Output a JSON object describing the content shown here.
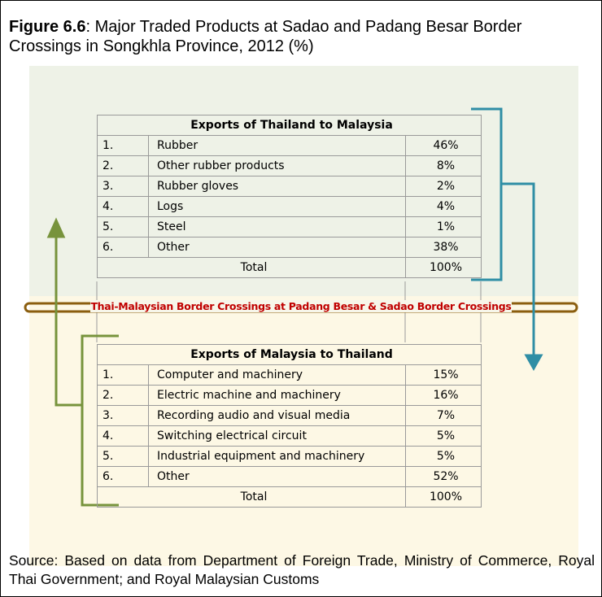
{
  "header": {
    "figure": "Figure 6.6",
    "title": ": Major Traded Products at Sadao and Padang Besar Border Crossings in Songkhla Province, 2012 (%)"
  },
  "tables": [
    {
      "title": "Exports of Thailand to Malaysia",
      "rows": [
        [
          "1.",
          "Rubber",
          "46%"
        ],
        [
          "2.",
          "Other rubber products",
          "8%"
        ],
        [
          "3.",
          "Rubber gloves",
          "2%"
        ],
        [
          "4.",
          "Logs",
          "4%"
        ],
        [
          "5.",
          "Steel",
          "1%"
        ],
        [
          "6.",
          "Other",
          "38%"
        ]
      ],
      "total": [
        "Total",
        "100%"
      ]
    },
    {
      "title": "Exports of Malaysia to Thailand",
      "rows": [
        [
          "1.",
          "Computer and machinery",
          "15%"
        ],
        [
          "2.",
          "Electric machine and machinery",
          "16%"
        ],
        [
          "3.",
          "Recording audio and visual media",
          "7%"
        ],
        [
          "4.",
          "Switching electrical circuit",
          "5%"
        ],
        [
          "5.",
          "Industrial equipment and machinery",
          "5%"
        ],
        [
          "6.",
          "Other",
          "52%"
        ]
      ],
      "total": [
        "Total",
        "100%"
      ]
    }
  ],
  "border_label": "Thai-Malaysian Border Crossings at Padang Besar & Sadao Border Crossings",
  "source": "Source: Based on data from Department of Foreign Trade, Ministry of Commerce, Royal Thai Government; and Royal Malaysian Customs"
}
